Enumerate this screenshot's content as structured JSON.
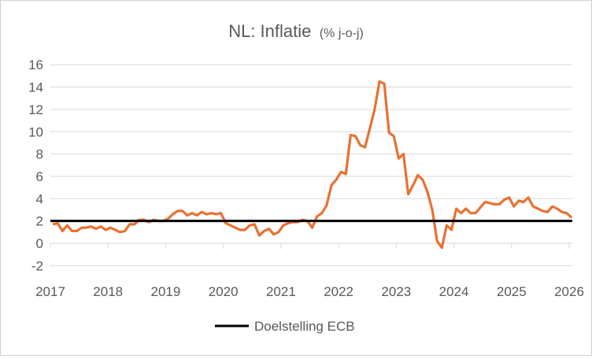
{
  "chart_data": {
    "type": "line",
    "title": "NL: Inflatie",
    "subtitle": "(% j-o-j)",
    "xlabel": "",
    "ylabel": "",
    "ylim": [
      -2,
      16
    ],
    "yticks": [
      "-2",
      "0",
      "2",
      "4",
      "6",
      "8",
      "10",
      "12",
      "14",
      "16"
    ],
    "xticks": [
      "2017",
      "2018",
      "2019",
      "2020",
      "2021",
      "2022",
      "2023",
      "2024",
      "2025",
      "2026"
    ],
    "xlim": [
      2017,
      2026
    ],
    "grid": true,
    "legend_position": "bottom",
    "series": [
      {
        "name": "Inflatie",
        "color": "#E97132",
        "start": "2017-01",
        "frequency": "monthly",
        "values": [
          1.7,
          1.8,
          1.1,
          1.6,
          1.1,
          1.1,
          1.4,
          1.4,
          1.5,
          1.3,
          1.5,
          1.2,
          1.4,
          1.2,
          1.0,
          1.1,
          1.7,
          1.7,
          2.1,
          2.1,
          1.9,
          2.1,
          2.0,
          2.0,
          2.2,
          2.6,
          2.9,
          2.9,
          2.5,
          2.7,
          2.5,
          2.8,
          2.6,
          2.7,
          2.6,
          2.7,
          1.8,
          1.6,
          1.4,
          1.2,
          1.2,
          1.6,
          1.7,
          0.7,
          1.1,
          1.3,
          0.8,
          1.0,
          1.6,
          1.8,
          1.9,
          1.9,
          2.1,
          2.0,
          1.4,
          2.4,
          2.7,
          3.4,
          5.2,
          5.7,
          6.4,
          6.2,
          9.7,
          9.6,
          8.8,
          8.6,
          10.3,
          12.0,
          14.5,
          14.3,
          9.9,
          9.6,
          7.6,
          8.0,
          4.4,
          5.2,
          6.1,
          5.7,
          4.6,
          3.0,
          0.2,
          -0.4,
          1.6,
          1.2,
          3.1,
          2.7,
          3.1,
          2.7,
          2.7,
          3.2,
          3.7,
          3.6,
          3.5,
          3.5,
          3.9,
          4.1,
          3.3,
          3.8,
          3.7,
          4.1,
          3.3,
          3.1,
          2.9,
          2.8,
          3.3,
          3.1,
          2.8,
          2.7,
          2.3
        ]
      },
      {
        "name": "Doelstelling ECB",
        "color": "#000000",
        "constant": 2
      }
    ],
    "legend": [
      "Doelstelling ECB"
    ]
  }
}
